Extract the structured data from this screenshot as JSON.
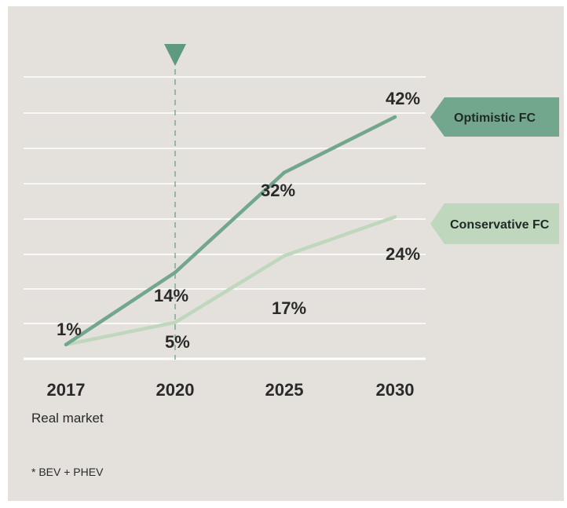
{
  "colors": {
    "background": "#e4e0db",
    "gridline": "#ffffff",
    "optimistic": "#72a78e",
    "conservative": "#bfd8bd",
    "marker": "#5d9a80",
    "text": "#2a2a2a"
  },
  "icons": {
    "marker": "triangle-down"
  },
  "chart_data": {
    "type": "line",
    "categories": [
      "2017",
      "2020",
      "2025",
      "2030"
    ],
    "category_sub_labels": [
      "Real market",
      "",
      "",
      ""
    ],
    "ylim": [
      0,
      46
    ],
    "grid": true,
    "highlight_category": "2020",
    "series": [
      {
        "name": "Optimistic FC",
        "values": [
          1,
          14,
          32,
          42
        ],
        "labels": [
          "1%",
          "14%",
          "32%",
          "42%"
        ]
      },
      {
        "name": "Conservative FC",
        "values": [
          1,
          5,
          17,
          24
        ],
        "labels": [
          "",
          "5%",
          "17%",
          "24%"
        ]
      }
    ],
    "footnote": "* BEV + PHEV"
  }
}
